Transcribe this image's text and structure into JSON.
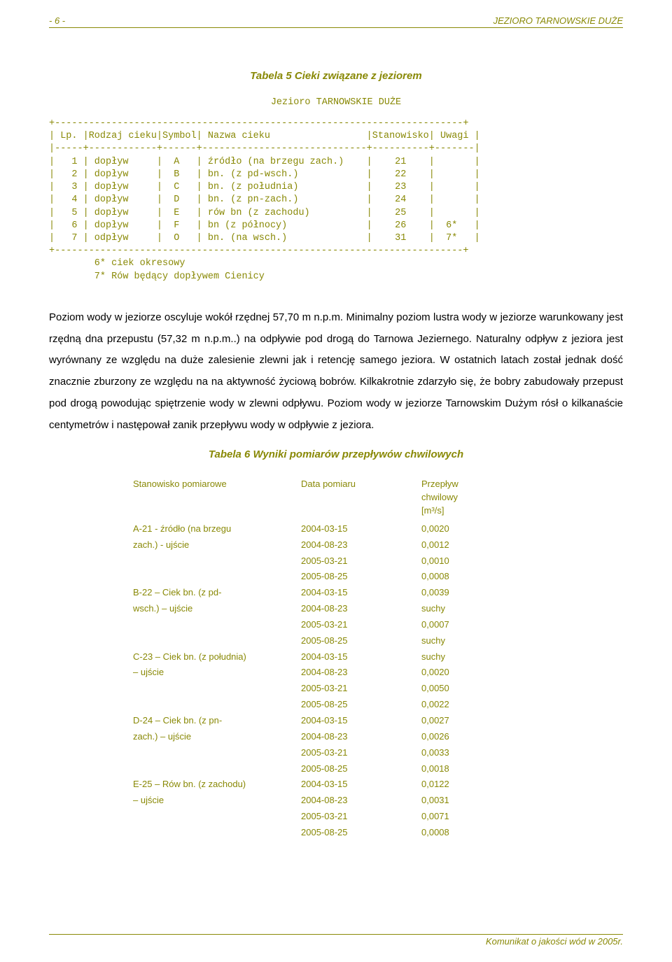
{
  "colors": {
    "text": "#898906",
    "body_text": "#000000",
    "rule": "#898906",
    "background": "#ffffff"
  },
  "typography": {
    "body_font": "Arial, sans-serif",
    "mono_font": "Courier New, monospace",
    "base_size_pt": 11
  },
  "header": {
    "left": "- 6 -",
    "right": "JEZIORO TARNOWSKIE DUŻE"
  },
  "table5": {
    "title": "Tabela 5 Cieki związane z jeziorem",
    "subtitle": "Jezioro TARNOWSKIE DUŻE",
    "ascii": "+------------------------------------------------------------------------+\n| Lp. |Rodzaj cieku|Symbol| Nazwa cieku                 |Stanowisko| Uwagi |\n|-----+------------+------+-----------------------------+----------+-------|\n|   1 | dopływ     |  A   | źródło (na brzegu zach.)    |    21    |       |\n|   2 | dopływ     |  B   | bn. (z pd-wsch.)            |    22    |       |\n|   3 | dopływ     |  C   | bn. (z południa)            |    23    |       |\n|   4 | dopływ     |  D   | bn. (z pn-zach.)            |    24    |       |\n|   5 | dopływ     |  E   | rów bn (z zachodu)          |    25    |       |\n|   6 | dopływ     |  F   | bn (z północy)              |    26    |  6*   |\n|   7 | odpływ     |  O   | bn. (na wsch.)              |    31    |  7*   |\n+------------------------------------------------------------------------+\n        6* ciek okresowy\n        7* Rów będący dopływem Cienicy"
  },
  "paragraph": "Poziom wody w jeziorze oscyluje wokół rzędnej 57,70 m n.p.m. Minimalny poziom lustra wody w jeziorze warunkowany jest rzędną dna przepustu (57,32 m n.p.m..) na odpływie pod drogą do Tarnowa Jeziernego.  Naturalny odpływ z jeziora jest wyrównany ze względu na duże zalesienie zlewni jak i retencję samego jeziora. W ostatnich  latach został jednak dość znacznie zburzony ze względu na na aktywność życiową bobrów. Kilkakrotnie zdarzyło się, że bobry zabudowały przepust pod drogą powodując spiętrzenie wody w zlewni odpływu. Poziom wody w jeziorze Tarnowskim Dużym rósł o kilkanaście centymetrów i następował zanik przepływu wody w odpływie z jeziora.",
  "table6": {
    "title": "Tabela 6  Wyniki pomiarów przepływów chwilowych",
    "header_col1": "Stanowisko pomiarowe",
    "header_col2": "Data pomiaru",
    "header_col3_line1": "Przepływ",
    "header_col3_line2": "chwilowy",
    "header_col3_line3": "[m³/s]",
    "stations": [
      {
        "name_line1": "A-21 - źródło (na brzegu",
        "name_line2": "zach.) - ujście",
        "rows": [
          {
            "date": "2004-03-15",
            "flow": "0,0020"
          },
          {
            "date": "2004-08-23",
            "flow": "0,0012"
          },
          {
            "date": "2005-03-21",
            "flow": "0,0010"
          },
          {
            "date": "2005-08-25",
            "flow": "0,0008"
          }
        ]
      },
      {
        "name_line1": "B-22 – Ciek bn. (z pd-",
        "name_line2": "wsch.) – ujście",
        "rows": [
          {
            "date": "2004-03-15",
            "flow": "0,0039"
          },
          {
            "date": "2004-08-23",
            "flow": "suchy"
          },
          {
            "date": "2005-03-21",
            "flow": "0,0007"
          },
          {
            "date": "2005-08-25",
            "flow": "suchy"
          }
        ]
      },
      {
        "name_line1": "C-23 – Ciek bn. (z południa)",
        "name_line2": "– ujście",
        "rows": [
          {
            "date": "2004-03-15",
            "flow": "suchy"
          },
          {
            "date": "2004-08-23",
            "flow": "0,0020"
          },
          {
            "date": "2005-03-21",
            "flow": "0,0050"
          },
          {
            "date": "2005-08-25",
            "flow": "0,0022"
          }
        ]
      },
      {
        "name_line1": "D-24 – Ciek bn. (z pn-",
        "name_line2": "zach.) – ujście",
        "rows": [
          {
            "date": "2004-03-15",
            "flow": "0,0027"
          },
          {
            "date": "2004-08-23",
            "flow": "0,0026"
          },
          {
            "date": "2005-03-21",
            "flow": "0,0033"
          },
          {
            "date": "2005-08-25",
            "flow": "0,0018"
          }
        ]
      },
      {
        "name_line1": "E-25 – Rów bn. (z zachodu)",
        "name_line2": "– ujście",
        "rows": [
          {
            "date": "2004-03-15",
            "flow": "0,0122"
          },
          {
            "date": "2004-08-23",
            "flow": "0,0031"
          },
          {
            "date": "2005-03-21",
            "flow": "0,0071"
          },
          {
            "date": "2005-08-25",
            "flow": "0,0008"
          }
        ]
      }
    ]
  },
  "footer": "Komunikat o jakości wód w 2005r."
}
